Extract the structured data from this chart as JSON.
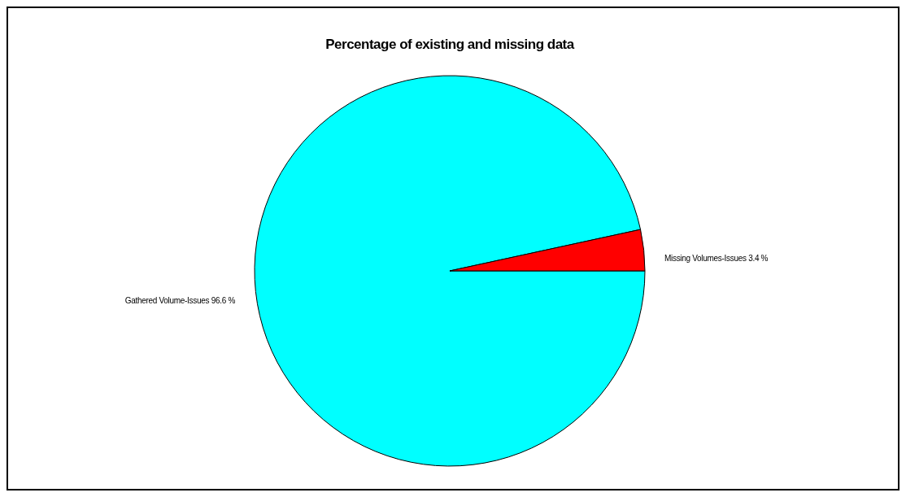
{
  "chart_data": {
    "type": "pie",
    "title": "Percentage of existing and missing data",
    "categories": [
      "Gathered Volume-Issues",
      "Missing Volumes-Issues"
    ],
    "values": [
      96.6,
      3.4
    ],
    "colors": [
      "#00ffff",
      "#ff0000"
    ],
    "value_labels": [
      "96.6 %",
      "3.4 %"
    ]
  }
}
